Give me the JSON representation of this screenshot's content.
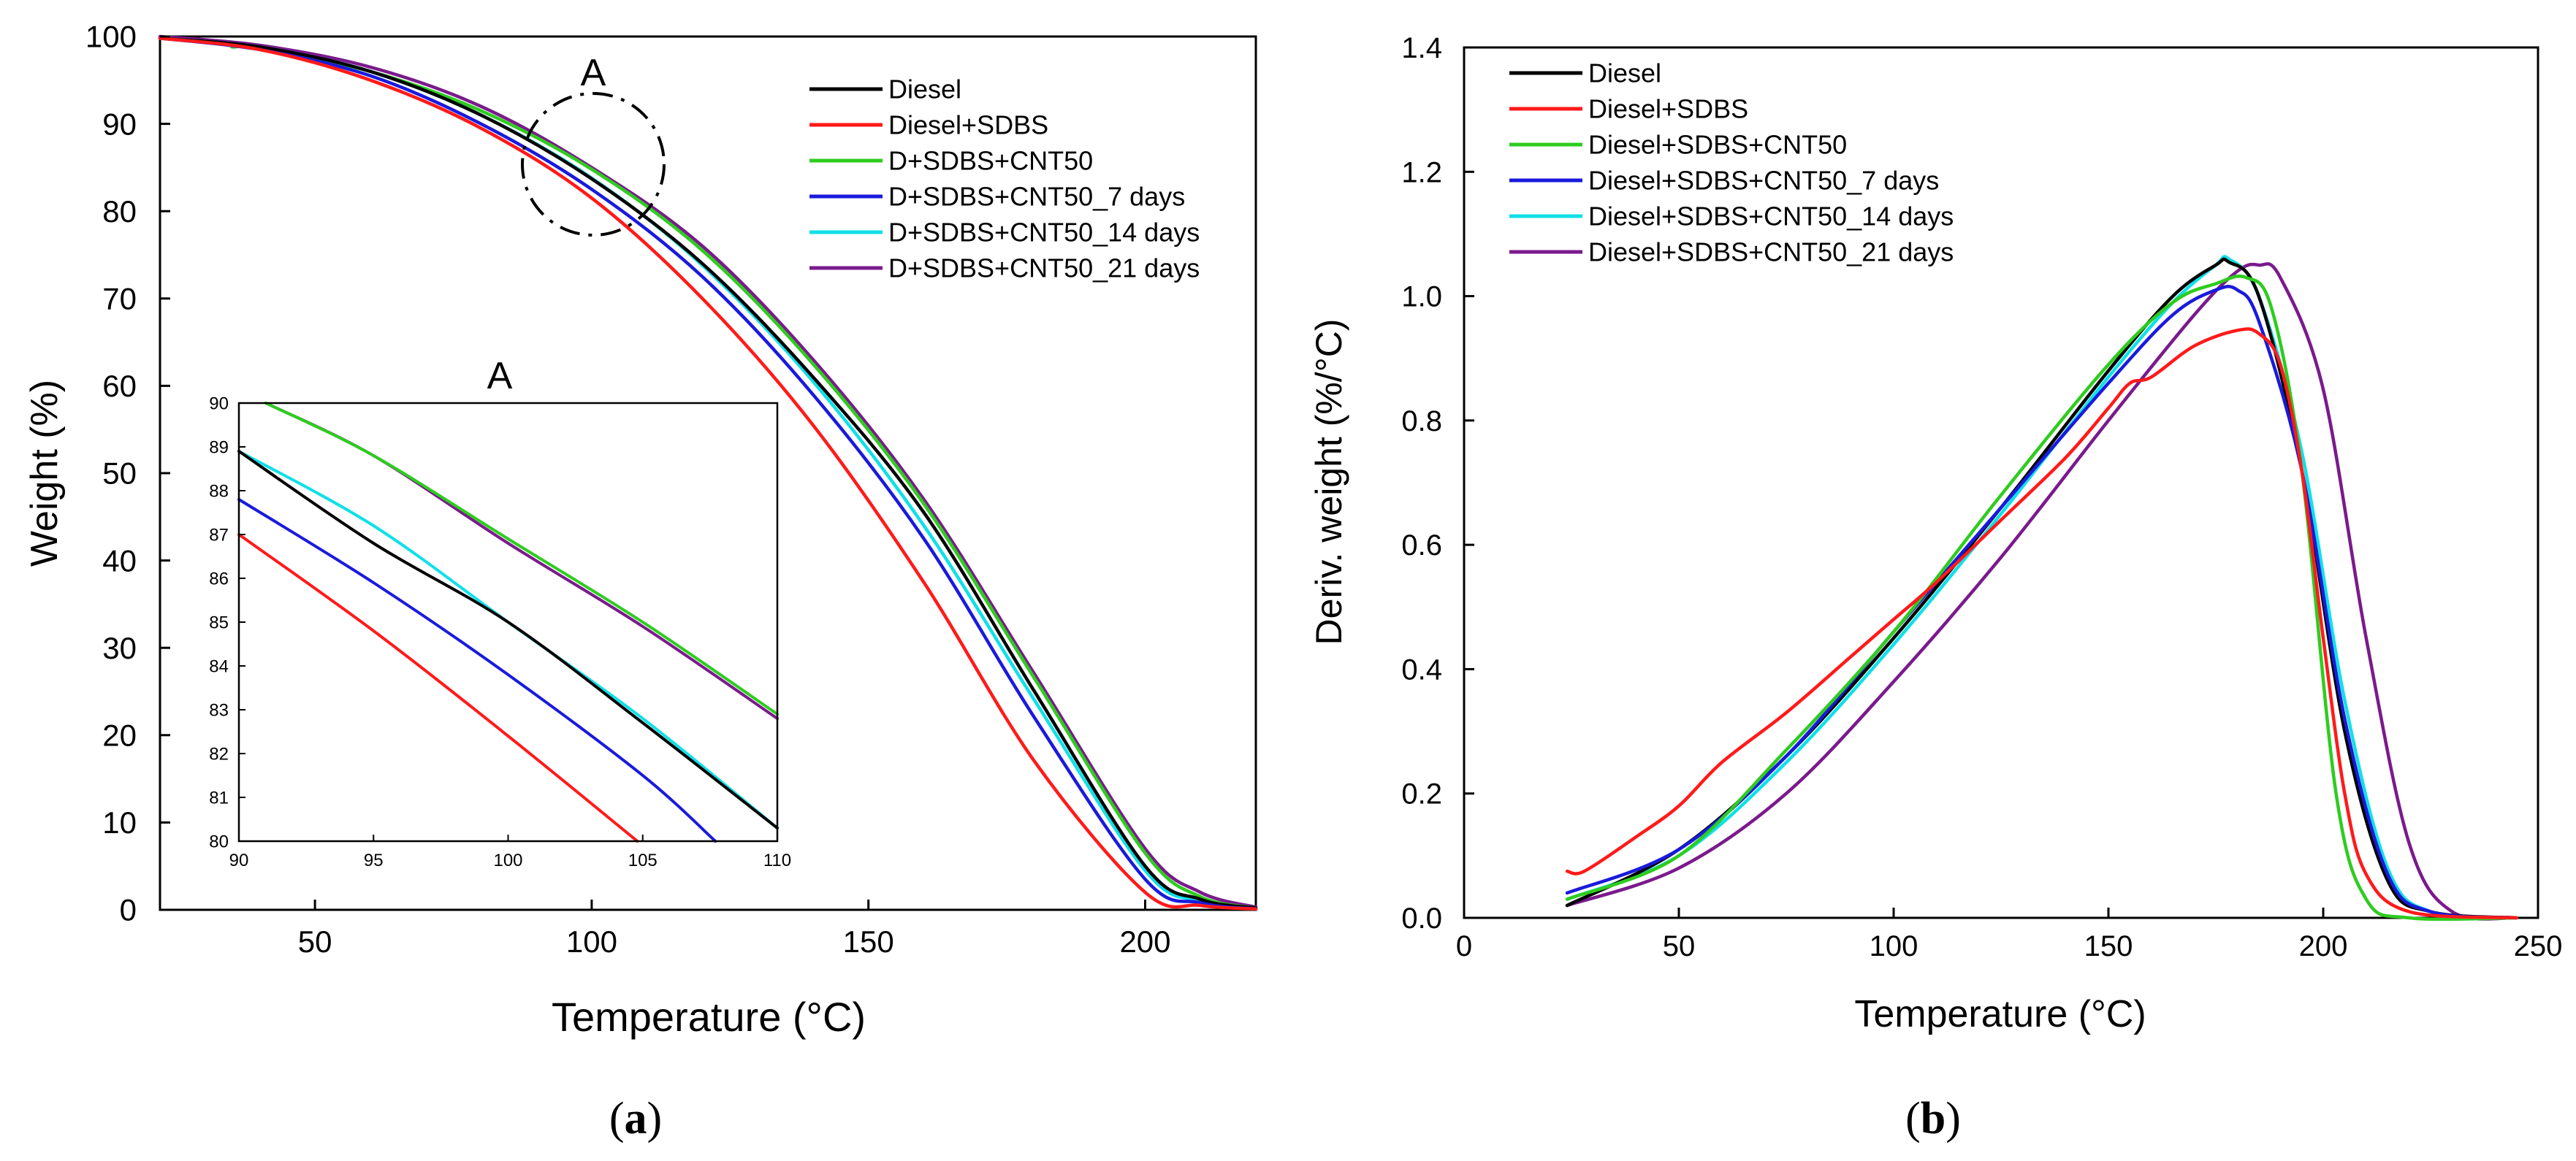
{
  "colors": {
    "Diesel": "#000000",
    "Diesel+SDBS": "#ff1a1a",
    "D+SDBS+CNT50": "#2ecc1f",
    "D+SDBS+CNT50_7 days": "#1a1adc",
    "D+SDBS+CNT50_14 days": "#10e0e8",
    "D+SDBS+CNT50_21 days": "#7a1a8c"
  },
  "chart_data": [
    {
      "id": "a",
      "type": "line",
      "caption_letter": "a",
      "xlabel": "Temperature (°C)",
      "ylabel": "Weight (%)",
      "xlim": [
        22,
        220
      ],
      "ylim": [
        0,
        100
      ],
      "xticks": [
        50,
        100,
        150,
        200
      ],
      "yticks": [
        0,
        10,
        20,
        30,
        40,
        50,
        60,
        70,
        80,
        90,
        100
      ],
      "annotation": "A",
      "legend": [
        "Diesel",
        "Diesel+SDBS",
        "D+SDBS+CNT50",
        "D+SDBS+CNT50_7 days",
        "D+SDBS+CNT50_14 days",
        "D+SDBS+CNT50_21 days"
      ],
      "series": [
        {
          "name": "D+SDBS+CNT50_21 days",
          "color_key": "D+SDBS+CNT50_21 days",
          "x": [
            22,
            40,
            60,
            80,
            100,
            120,
            140,
            160,
            180,
            200,
            210,
            220
          ],
          "y": [
            100,
            99,
            96.5,
            92,
            85,
            76,
            63,
            47,
            27,
            7,
            2,
            0.3
          ]
        },
        {
          "name": "D+SDBS+CNT50",
          "color_key": "D+SDBS+CNT50",
          "x": [
            35,
            40,
            60,
            80,
            100,
            120,
            140,
            160,
            180,
            200,
            210,
            220
          ],
          "y": [
            98.8,
            98.6,
            96,
            91.5,
            84.8,
            75.5,
            62.5,
            46.5,
            26.5,
            6.5,
            1.5,
            0.2
          ]
        },
        {
          "name": "D+SDBS+CNT50_14 days",
          "color_key": "D+SDBS+CNT50_14 days",
          "x": [
            22,
            40,
            60,
            80,
            100,
            120,
            140,
            160,
            180,
            200,
            210,
            220
          ],
          "y": [
            99.8,
            98.8,
            96,
            91,
            83.8,
            73.8,
            60.5,
            44,
            24,
            4.5,
            1,
            0.2
          ]
        },
        {
          "name": "Diesel",
          "color_key": "Diesel",
          "x": [
            22,
            40,
            60,
            80,
            100,
            120,
            140,
            160,
            180,
            200,
            210,
            220
          ],
          "y": [
            99.8,
            98.8,
            96,
            91,
            83.7,
            74,
            61,
            45.5,
            25,
            5,
            1.2,
            0.2
          ]
        },
        {
          "name": "D+SDBS+CNT50_7 days",
          "color_key": "D+SDBS+CNT50_7 days",
          "x": [
            22,
            40,
            60,
            80,
            100,
            120,
            140,
            160,
            180,
            200,
            210,
            220
          ],
          "y": [
            99.8,
            98.5,
            95.5,
            90,
            82.5,
            72.5,
            59,
            42.5,
            22,
            3.5,
            0.8,
            0.1
          ]
        },
        {
          "name": "Diesel+SDBS",
          "color_key": "Diesel+SDBS",
          "x": [
            22,
            40,
            60,
            80,
            100,
            120,
            140,
            160,
            180,
            200,
            210,
            220
          ],
          "y": [
            99.8,
            98.5,
            95,
            89.5,
            81.5,
            70,
            55.5,
            37.5,
            17,
            2,
            0.5,
            0.1
          ]
        }
      ]
    },
    {
      "id": "a-inset",
      "type": "line",
      "title": "A",
      "xlim": [
        90,
        110
      ],
      "ylim": [
        80,
        90
      ],
      "xticks": [
        90,
        95,
        100,
        105,
        110
      ],
      "yticks": [
        80,
        81,
        82,
        83,
        84,
        85,
        86,
        87,
        88,
        89,
        90
      ],
      "series": [
        {
          "name": "D+SDBS+CNT50_21 days",
          "color_key": "D+SDBS+CNT50_21 days",
          "x": [
            91,
            95,
            100,
            105,
            110
          ],
          "y": [
            90,
            88.8,
            86.8,
            84.9,
            82.8
          ]
        },
        {
          "name": "D+SDBS+CNT50",
          "color_key": "D+SDBS+CNT50",
          "x": [
            91,
            95,
            100,
            105,
            110
          ],
          "y": [
            90,
            88.8,
            86.9,
            85,
            82.9
          ]
        },
        {
          "name": "D+SDBS+CNT50_14 days",
          "color_key": "D+SDBS+CNT50_14 days",
          "x": [
            90,
            95,
            100,
            105,
            110
          ],
          "y": [
            88.9,
            87.2,
            85,
            82.8,
            80.3
          ]
        },
        {
          "name": "Diesel",
          "color_key": "Diesel",
          "x": [
            90,
            95,
            100,
            105,
            110
          ],
          "y": [
            88.9,
            86.8,
            85,
            82.7,
            80.3
          ]
        },
        {
          "name": "D+SDBS+CNT50_7 days",
          "color_key": "D+SDBS+CNT50_7 days",
          "x": [
            90,
            95,
            100,
            105,
            107.7
          ],
          "y": [
            87.8,
            85.9,
            83.8,
            81.5,
            80
          ]
        },
        {
          "name": "Diesel+SDBS",
          "color_key": "Diesel+SDBS",
          "x": [
            90,
            95,
            100,
            104.8
          ],
          "y": [
            87,
            84.8,
            82.4,
            80
          ]
        }
      ]
    },
    {
      "id": "b",
      "type": "line",
      "caption_letter": "b",
      "xlabel": "Temperature (°C)",
      "ylabel": "Deriv. weight (%/°C)",
      "xlim": [
        0,
        250
      ],
      "ylim": [
        0,
        1.4
      ],
      "xticks": [
        0,
        50,
        100,
        150,
        200,
        250
      ],
      "yticks": [
        0.0,
        0.2,
        0.4,
        0.6,
        0.8,
        1.0,
        1.2,
        1.4
      ],
      "legend": [
        "Diesel",
        "Diesel+SDBS",
        "Diesel+SDBS+CNT50",
        "Diesel+SDBS+CNT50_7 days",
        "Diesel+SDBS+CNT50_14 days",
        "Diesel+SDBS+CNT50_21 days"
      ],
      "series": [
        {
          "name": "Diesel+SDBS+CNT50_21 days",
          "color_key": "D+SDBS+CNT50_21 days",
          "x": [
            24,
            50,
            75,
            100,
            125,
            150,
            170,
            180,
            185,
            190,
            200,
            210,
            220,
            230,
            245
          ],
          "y": [
            0.02,
            0.08,
            0.2,
            0.38,
            0.58,
            0.8,
            0.97,
            1.04,
            1.05,
            1.03,
            0.85,
            0.45,
            0.12,
            0.01,
            0.0
          ]
        },
        {
          "name": "Diesel+SDBS+CNT50_14 days",
          "color_key": "D+SDBS+CNT50_14 days",
          "x": [
            24,
            50,
            75,
            100,
            125,
            150,
            165,
            175,
            178,
            185,
            195,
            205,
            215,
            225,
            245
          ],
          "y": [
            0.03,
            0.1,
            0.25,
            0.44,
            0.65,
            0.87,
            0.99,
            1.05,
            1.06,
            1.0,
            0.75,
            0.35,
            0.08,
            0.01,
            0.0
          ]
        },
        {
          "name": "Diesel",
          "color_key": "Diesel",
          "x": [
            24,
            50,
            75,
            100,
            125,
            150,
            165,
            175,
            178,
            185,
            195,
            205,
            215,
            225,
            245
          ],
          "y": [
            0.02,
            0.11,
            0.26,
            0.45,
            0.66,
            0.88,
            1.0,
            1.05,
            1.055,
            1.0,
            0.72,
            0.3,
            0.06,
            0.01,
            0.0
          ]
        },
        {
          "name": "Diesel+SDBS+CNT50_7 days",
          "color_key": "D+SDBS+CNT50_7 days",
          "x": [
            24,
            50,
            75,
            100,
            125,
            150,
            165,
            175,
            180,
            185,
            195,
            205,
            215,
            225,
            245
          ],
          "y": [
            0.04,
            0.11,
            0.26,
            0.46,
            0.66,
            0.86,
            0.97,
            1.01,
            1.01,
            0.96,
            0.72,
            0.32,
            0.07,
            0.01,
            0.0
          ]
        },
        {
          "name": "Diesel+SDBS+CNT50",
          "color_key": "D+SDBS+CNT50",
          "x": [
            24,
            50,
            75,
            100,
            125,
            150,
            165,
            175,
            182,
            188,
            195,
            203,
            210,
            220,
            245
          ],
          "y": [
            0.03,
            0.1,
            0.27,
            0.46,
            0.68,
            0.89,
            0.99,
            1.02,
            1.03,
            0.98,
            0.72,
            0.2,
            0.03,
            0.0,
            0.0
          ]
        },
        {
          "name": "Diesel+SDBS",
          "color_key": "Diesel+SDBS",
          "x": [
            24,
            28,
            40,
            50,
            60,
            75,
            90,
            100,
            110,
            125,
            140,
            150,
            155,
            160,
            170,
            180,
            185,
            190,
            195,
            200,
            205,
            210,
            220,
            245
          ],
          "y": [
            0.075,
            0.075,
            0.13,
            0.18,
            0.25,
            0.33,
            0.42,
            0.48,
            0.54,
            0.64,
            0.74,
            0.82,
            0.86,
            0.87,
            0.92,
            0.945,
            0.94,
            0.89,
            0.72,
            0.45,
            0.2,
            0.07,
            0.01,
            0.0
          ]
        }
      ]
    }
  ]
}
